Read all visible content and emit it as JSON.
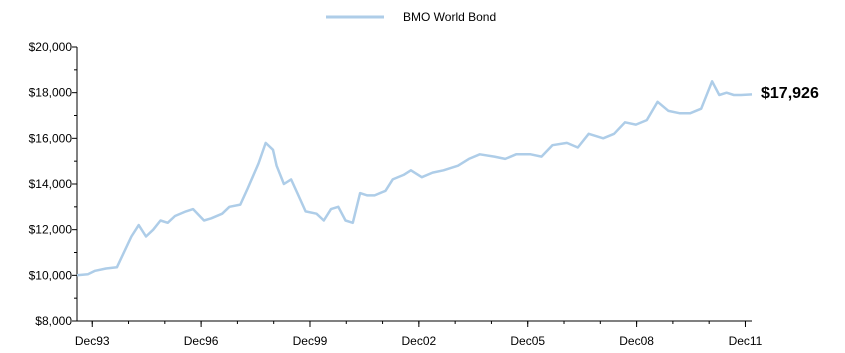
{
  "chart_data": {
    "type": "line",
    "title": "",
    "xlabel": "",
    "ylabel": "",
    "legend_position": "top-center",
    "grid": false,
    "x_tick_labels": [
      "Dec93",
      "Dec96",
      "Dec99",
      "Dec02",
      "Dec05",
      "Dec08",
      "Dec11"
    ],
    "x_ticks": [
      1993.92,
      1996.92,
      1999.92,
      2002.92,
      2005.92,
      2008.92,
      2011.92
    ],
    "xlim": [
      1993.5,
      2012.1
    ],
    "y_ticks": [
      8000,
      10000,
      12000,
      14000,
      16000,
      18000,
      20000
    ],
    "y_tick_labels": [
      "$8,000",
      "$10,000",
      "$12,000",
      "$14,000",
      "$16,000",
      "$18,000",
      "$20,000"
    ],
    "ylim": [
      8000,
      20000
    ],
    "end_value_label": "$17,926",
    "series": [
      {
        "name": "BMO World Bond",
        "color": "#aecde8",
        "x": [
          1993.5,
          1993.8,
          1994.0,
          1994.3,
          1994.6,
          1995.0,
          1995.2,
          1995.4,
          1995.6,
          1995.8,
          1996.0,
          1996.2,
          1996.5,
          1996.7,
          1997.0,
          1997.2,
          1997.5,
          1997.7,
          1998.0,
          1998.2,
          1998.5,
          1998.7,
          1998.9,
          1999.0,
          1999.2,
          1999.4,
          1999.6,
          1999.8,
          2000.1,
          2000.3,
          2000.5,
          2000.7,
          2000.9,
          2001.1,
          2001.3,
          2001.5,
          2001.7,
          2002.0,
          2002.2,
          2002.5,
          2002.7,
          2003.0,
          2003.3,
          2003.6,
          2004.0,
          2004.3,
          2004.6,
          2005.0,
          2005.3,
          2005.6,
          2006.0,
          2006.3,
          2006.6,
          2007.0,
          2007.3,
          2007.6,
          2008.0,
          2008.3,
          2008.6,
          2008.9,
          2009.2,
          2009.5,
          2009.8,
          2010.1,
          2010.4,
          2010.7,
          2011.0,
          2011.2,
          2011.4,
          2011.6,
          2011.8,
          2012.1
        ],
        "values": [
          10000,
          10050,
          10200,
          10300,
          10350,
          11700,
          12200,
          11700,
          12000,
          12400,
          12300,
          12600,
          12800,
          12900,
          12400,
          12500,
          12700,
          13000,
          13100,
          13800,
          14900,
          15800,
          15500,
          14800,
          14000,
          14200,
          13500,
          12800,
          12700,
          12400,
          12900,
          13000,
          12400,
          12300,
          13600,
          13500,
          13500,
          13700,
          14200,
          14400,
          14600,
          14300,
          14500,
          14600,
          14800,
          15100,
          15300,
          15200,
          15100,
          15300,
          15300,
          15200,
          15700,
          15800,
          15600,
          16200,
          16000,
          16200,
          16700,
          16600,
          16800,
          17600,
          17200,
          17100,
          17100,
          17300,
          18500,
          17900,
          18000,
          17900,
          17900,
          17926
        ]
      }
    ]
  }
}
